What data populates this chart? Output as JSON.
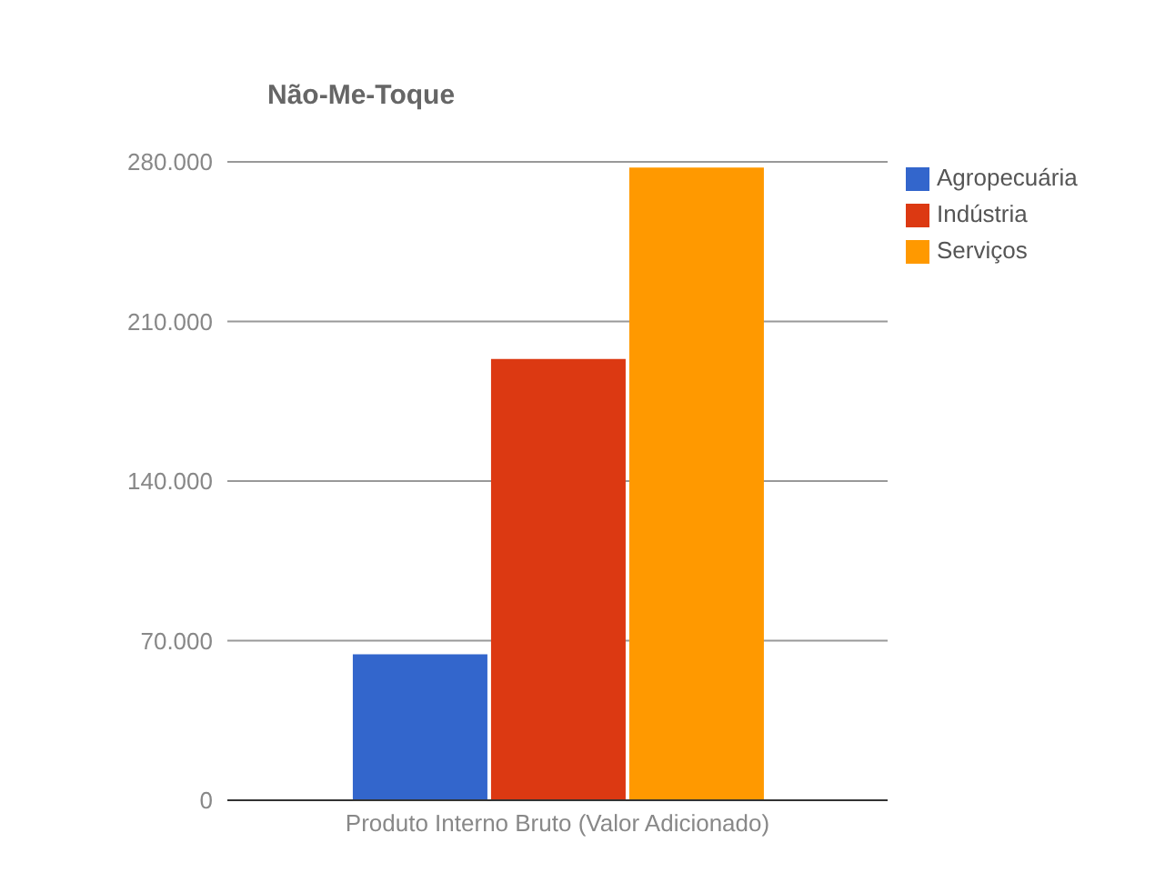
{
  "chart_data": {
    "type": "bar",
    "title": "Não-Me-Toque",
    "categories": [
      "Produto Interno Bruto (Valor Adicionado)"
    ],
    "series": [
      {
        "name": "Agropecuária",
        "color": "#3366cc",
        "values": [
          64000
        ]
      },
      {
        "name": "Indústria",
        "color": "#dc3912",
        "values": [
          193500
        ]
      },
      {
        "name": "Serviços",
        "color": "#ff9900",
        "values": [
          277500
        ]
      }
    ],
    "ylim": [
      0,
      280000
    ],
    "yticks": [
      {
        "value": 0,
        "label": "0"
      },
      {
        "value": 70000,
        "label": "70.000"
      },
      {
        "value": 140000,
        "label": "140.000"
      },
      {
        "value": 210000,
        "label": "210.000"
      },
      {
        "value": 280000,
        "label": "280.000"
      }
    ],
    "grid": "y",
    "legend": "top right"
  }
}
